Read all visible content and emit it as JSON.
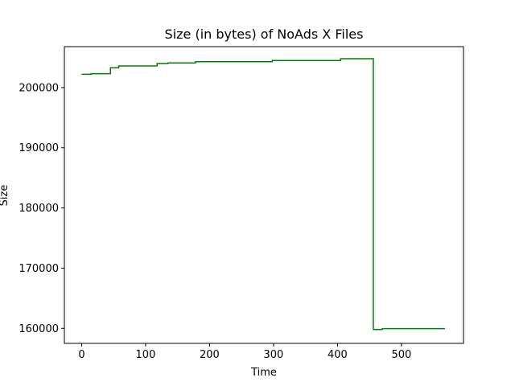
{
  "chart_data": {
    "type": "line",
    "title": "Size (in bytes) of NoAds X Files",
    "xlabel": "Time",
    "ylabel": "Size",
    "xlim": [
      -27,
      597
    ],
    "ylim": [
      157500,
      206800
    ],
    "xticks": [
      0,
      100,
      200,
      300,
      400,
      500
    ],
    "yticks": [
      160000,
      170000,
      180000,
      190000,
      200000
    ],
    "xtick_labels": [
      "0",
      "100",
      "200",
      "300",
      "400",
      "500"
    ],
    "ytick_labels": [
      "160000",
      "170000",
      "180000",
      "190000",
      "200000"
    ],
    "grid": false,
    "legend": "none",
    "step": "post",
    "series": [
      {
        "color": "#008000",
        "x": [
          0,
          15,
          45,
          58,
          118,
          135,
          178,
          298,
          405,
          453,
          456,
          467,
          470,
          568
        ],
        "y": [
          202200,
          202300,
          203300,
          203600,
          204000,
          204100,
          204300,
          204500,
          204800,
          204800,
          159800,
          159800,
          159950,
          159950
        ]
      }
    ]
  }
}
